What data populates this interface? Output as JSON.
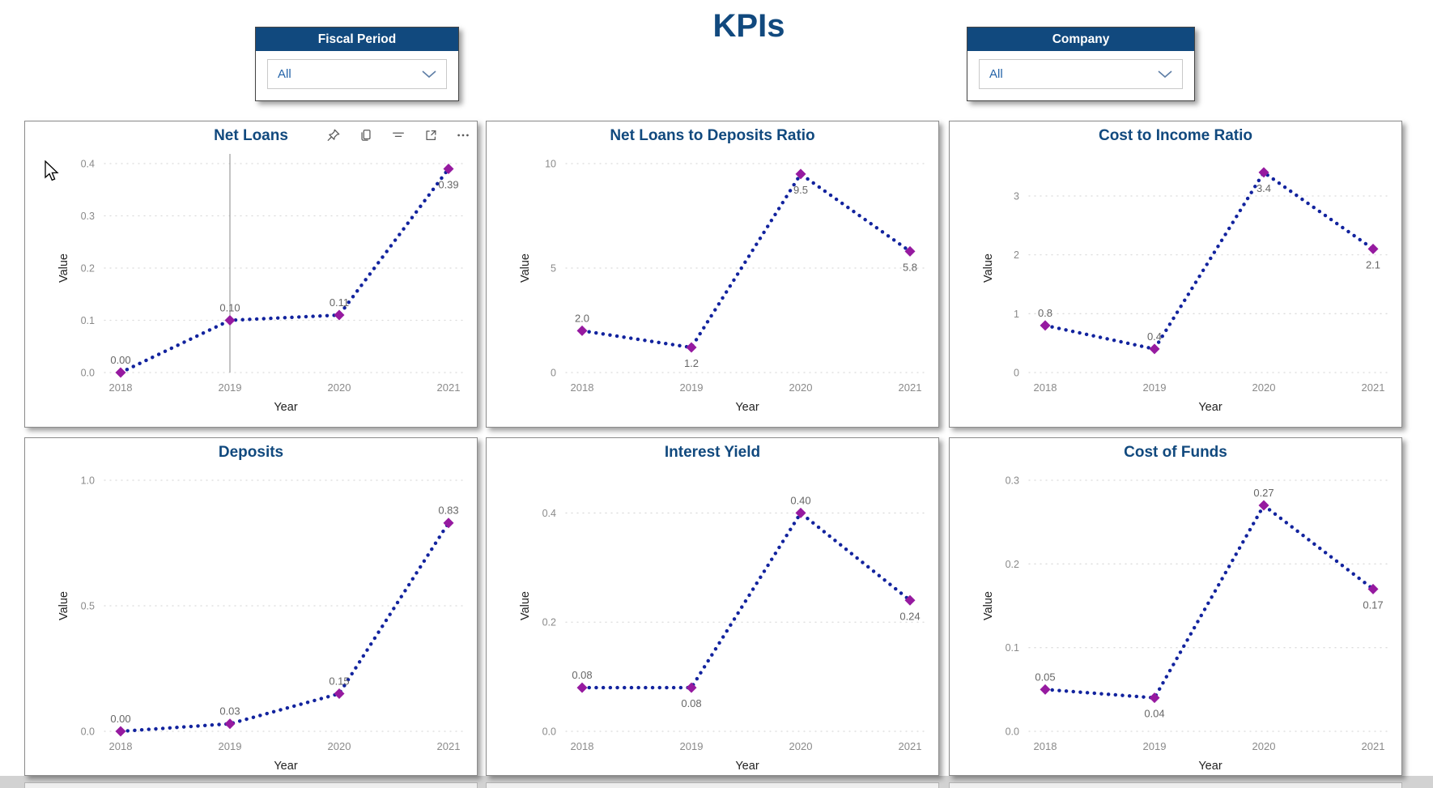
{
  "page": {
    "title": "KPIs"
  },
  "colors": {
    "header_bg": "#11497E",
    "chart_title": "#11497E",
    "line": "#12239E",
    "marker": "#961AA0",
    "grid": "#DBDBDB",
    "tick_text": "#8A8A8A",
    "data_label": "#666666",
    "axis_title": "#222222",
    "crosshair": "#888888",
    "dropdown_text": "#2463A8"
  },
  "slicers": [
    {
      "name": "fiscal-period",
      "title": "Fiscal Period",
      "selected": "All"
    },
    {
      "name": "company",
      "title": "Company",
      "selected": "All"
    }
  ],
  "chart_data": [
    {
      "type": "line",
      "title": "Net Loans",
      "x": [
        "2018",
        "2019",
        "2020",
        "2021"
      ],
      "values": [
        0.0,
        0.1,
        0.11,
        0.39
      ],
      "point_labels": [
        "0.00",
        "0.10",
        "0.11",
        "0.39"
      ],
      "label_pos": [
        "above",
        "above",
        "above",
        "below"
      ],
      "yticks": [
        "0.0",
        "0.1",
        "0.2",
        "0.3",
        "0.4"
      ],
      "ytick_vals": [
        0,
        0.1,
        0.2,
        0.3,
        0.4
      ],
      "ylim": [
        0,
        0.4
      ],
      "xlabel": "Year",
      "ylabel": "Value",
      "line_style": "dotted",
      "marker": "diamond",
      "grid": true,
      "crosshair_x": "2019",
      "toolbar": [
        "pin",
        "copy",
        "filter",
        "focus-mode",
        "more-options"
      ]
    },
    {
      "type": "line",
      "title": "Net Loans to Deposits Ratio",
      "x": [
        "2018",
        "2019",
        "2020",
        "2021"
      ],
      "values": [
        2.0,
        1.2,
        9.5,
        5.8
      ],
      "point_labels": [
        "2.0",
        "1.2",
        "9.5",
        "5.8"
      ],
      "label_pos": [
        "above",
        "below",
        "below",
        "below"
      ],
      "yticks": [
        "0",
        "5",
        "10"
      ],
      "ytick_vals": [
        0,
        5,
        10
      ],
      "ylim": [
        0,
        10
      ],
      "xlabel": "Year",
      "ylabel": "Value",
      "line_style": "dotted",
      "marker": "diamond",
      "grid": true
    },
    {
      "type": "line",
      "title": "Cost to Income Ratio",
      "x": [
        "2018",
        "2019",
        "2020",
        "2021"
      ],
      "values": [
        0.8,
        0.4,
        3.4,
        2.1
      ],
      "point_labels": [
        "0.8",
        "0.4",
        "3.4",
        "2.1"
      ],
      "label_pos": [
        "above",
        "above",
        "below",
        "below"
      ],
      "yticks": [
        "0",
        "1",
        "2",
        "3"
      ],
      "ytick_vals": [
        0,
        1,
        2,
        3
      ],
      "ylim": [
        0,
        3.55
      ],
      "xlabel": "Year",
      "ylabel": "Value",
      "line_style": "dotted",
      "marker": "diamond",
      "grid": true
    },
    {
      "type": "line",
      "title": "Deposits",
      "x": [
        "2018",
        "2019",
        "2020",
        "2021"
      ],
      "values": [
        0.0,
        0.03,
        0.15,
        0.83
      ],
      "point_labels": [
        "0.00",
        "0.03",
        "0.15",
        "0.83"
      ],
      "label_pos": [
        "above",
        "above",
        "above",
        "above"
      ],
      "yticks": [
        "0.0",
        "0.5",
        "1.0"
      ],
      "ytick_vals": [
        0,
        0.5,
        1
      ],
      "ylim": [
        0,
        1.0
      ],
      "xlabel": "Year",
      "ylabel": "Value",
      "line_style": "dotted",
      "marker": "diamond",
      "grid": true
    },
    {
      "type": "line",
      "title": "Interest Yield",
      "x": [
        "2018",
        "2019",
        "2020",
        "2021"
      ],
      "values": [
        0.08,
        0.08,
        0.4,
        0.24
      ],
      "point_labels": [
        "0.08",
        "0.08",
        "0.40",
        "0.24"
      ],
      "label_pos": [
        "above",
        "below",
        "above",
        "below"
      ],
      "yticks": [
        "0.0",
        "0.2",
        "0.4"
      ],
      "ytick_vals": [
        0,
        0.2,
        0.4
      ],
      "ylim": [
        0,
        0.46
      ],
      "xlabel": "Year",
      "ylabel": "Value",
      "line_style": "dotted",
      "marker": "diamond",
      "grid": true
    },
    {
      "type": "line",
      "title": "Cost of Funds",
      "x": [
        "2018",
        "2019",
        "2020",
        "2021"
      ],
      "values": [
        0.05,
        0.04,
        0.27,
        0.17
      ],
      "point_labels": [
        "0.05",
        "0.04",
        "0.27",
        "0.17"
      ],
      "label_pos": [
        "above",
        "below",
        "above",
        "below"
      ],
      "yticks": [
        "0.0",
        "0.1",
        "0.2",
        "0.3"
      ],
      "ytick_vals": [
        0,
        0.1,
        0.2,
        0.3
      ],
      "ylim": [
        0,
        0.3
      ],
      "xlabel": "Year",
      "ylabel": "Value",
      "line_style": "dotted",
      "marker": "diamond",
      "grid": true
    }
  ]
}
